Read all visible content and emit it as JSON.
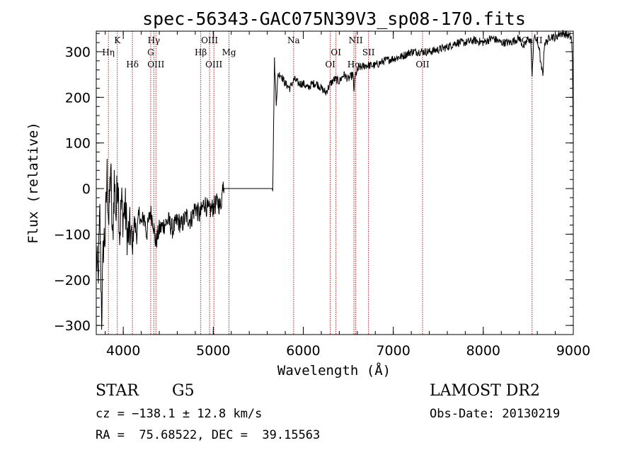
{
  "chart_data": {
    "type": "line",
    "title": "spec-56343-GAC075N39V3_sp08-170.fits",
    "xlabel": "Wavelength (Å)",
    "ylabel": "Flux (relative)",
    "xlim": [
      3700,
      9000
    ],
    "ylim": [
      -320,
      345
    ],
    "xticks": [
      4000,
      5000,
      6000,
      7000,
      8000,
      9000
    ],
    "yticks": [
      -300,
      -200,
      -100,
      0,
      100,
      200,
      300
    ],
    "x_minor_step": 200,
    "y_minor_step": 20,
    "grid": false,
    "line_color": "#000000",
    "marker_color": "#b02020",
    "line_markers": [
      {
        "label": "K",
        "x": 3934,
        "row": 0
      },
      {
        "label": "Hη",
        "x": 3835,
        "row": 1
      },
      {
        "label": "Hδ",
        "x": 4102,
        "row": 2
      },
      {
        "label": "Hγ",
        "x": 4340,
        "row": 0
      },
      {
        "label": "G",
        "x": 4305,
        "row": 1
      },
      {
        "label": "OIII",
        "x": 4363,
        "row": 2
      },
      {
        "label": "OIII",
        "x": 4959,
        "row": 0
      },
      {
        "label": "Hβ",
        "x": 4861,
        "row": 1
      },
      {
        "label": "OIII",
        "x": 5007,
        "row": 2
      },
      {
        "label": "Mg",
        "x": 5175,
        "row": 1
      },
      {
        "label": "Na",
        "x": 5893,
        "row": 0
      },
      {
        "label": "OI",
        "x": 6363,
        "row": 1
      },
      {
        "label": "OI",
        "x": 6300,
        "row": 2
      },
      {
        "label": "NII",
        "x": 6583,
        "row": 0
      },
      {
        "label": "Hα",
        "x": 6563,
        "row": 2
      },
      {
        "label": "SII",
        "x": 6725,
        "row": 1
      },
      {
        "label": "OII",
        "x": 7325,
        "row": 2
      },
      {
        "label": "Ca II",
        "x": 8542,
        "row": 0
      }
    ],
    "series": [
      {
        "x": [
          3700,
          3720,
          3740,
          3760,
          3780,
          3800,
          3820,
          3840,
          3860,
          3880,
          3900,
          3920,
          3940,
          3960,
          3980,
          4000,
          4020,
          4050,
          4080,
          4100,
          4120,
          4150,
          4180,
          4200,
          4230,
          4260,
          4300,
          4330,
          4360,
          4400,
          4450,
          4500,
          4550,
          4600,
          4650,
          4700,
          4750,
          4800,
          4850,
          4900,
          4950,
          5000,
          5050,
          5080,
          5100,
          5110,
          5120,
          5200,
          5400,
          5600,
          5660,
          5670,
          5680,
          5700,
          5720,
          5750,
          5800,
          5850,
          5900,
          5950,
          6000,
          6050,
          6100,
          6150,
          6200,
          6250,
          6300,
          6350,
          6400,
          6450,
          6500,
          6550,
          6563,
          6580,
          6620,
          6700,
          6800,
          6900,
          7000,
          7100,
          7200,
          7300,
          7400,
          7500,
          7600,
          7700,
          7800,
          7900,
          8000,
          8100,
          8200,
          8300,
          8400,
          8450,
          8500,
          8530,
          8542,
          8560,
          8580,
          8620,
          8640,
          8662,
          8680,
          8700,
          8750,
          8800,
          8850,
          8900,
          8950,
          8980,
          8990,
          9000
        ],
        "y": [
          -150,
          -200,
          -60,
          -280,
          -120,
          -100,
          30,
          -80,
          50,
          -130,
          20,
          -60,
          40,
          -100,
          -30,
          -60,
          -40,
          -110,
          -90,
          -140,
          -70,
          -100,
          -50,
          -80,
          -60,
          -100,
          -50,
          -70,
          -120,
          -90,
          -80,
          -70,
          -90,
          -70,
          -80,
          -60,
          -70,
          -40,
          -60,
          -30,
          -50,
          -40,
          -30,
          -40,
          -10,
          25,
          0,
          0,
          0,
          0,
          0,
          130,
          280,
          190,
          250,
          250,
          230,
          220,
          240,
          230,
          230,
          220,
          230,
          230,
          220,
          210,
          230,
          240,
          235,
          250,
          240,
          250,
          215,
          250,
          265,
          270,
          270,
          280,
          285,
          290,
          300,
          300,
          300,
          305,
          310,
          320,
          320,
          325,
          320,
          330,
          320,
          320,
          330,
          310,
          330,
          320,
          240,
          330,
          330,
          310,
          270,
          250,
          320,
          320,
          335,
          330,
          340,
          340,
          335,
          330,
          280,
          100
        ]
      }
    ]
  },
  "info": {
    "object_class": "STAR",
    "subclass": "G5",
    "survey": "LAMOST DR2",
    "redshift_text": "cz = −138.1 ± 12.8 km/s",
    "obs_date_text": "Obs-Date: 20130219",
    "coords_text": "RA =  75.68522, DEC =  39.15563"
  }
}
